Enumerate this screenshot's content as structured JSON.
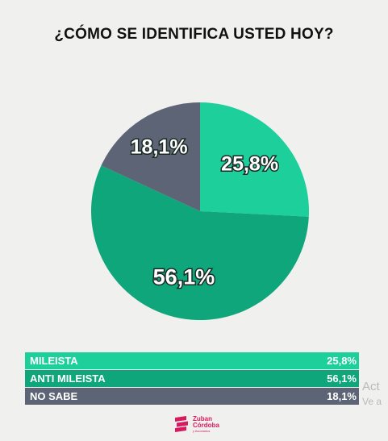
{
  "chart_data": {
    "type": "pie",
    "title": "¿CÓMO SE IDENTIFICA USTED HOY?",
    "slices": [
      {
        "name": "MILEISTA",
        "value": 25.8,
        "label": "25,8%",
        "color": "#1dd09b"
      },
      {
        "name": "ANTI MILEISTA",
        "value": 56.1,
        "label": "56,1%",
        "color": "#0ea67a"
      },
      {
        "name": "NO SABE",
        "value": 18.1,
        "label": "18,1%",
        "color": "#5d6475"
      }
    ],
    "start_angle_deg": 0,
    "direction": "clockwise",
    "legend_placement": "bottom"
  },
  "watermark": {
    "line1": "Act",
    "line2": "Ve a"
  },
  "logo": {
    "line1": "Zuban",
    "line2": "Córdoba",
    "line3": "y Asociados"
  },
  "colors": {
    "logo": "#d81b60"
  }
}
